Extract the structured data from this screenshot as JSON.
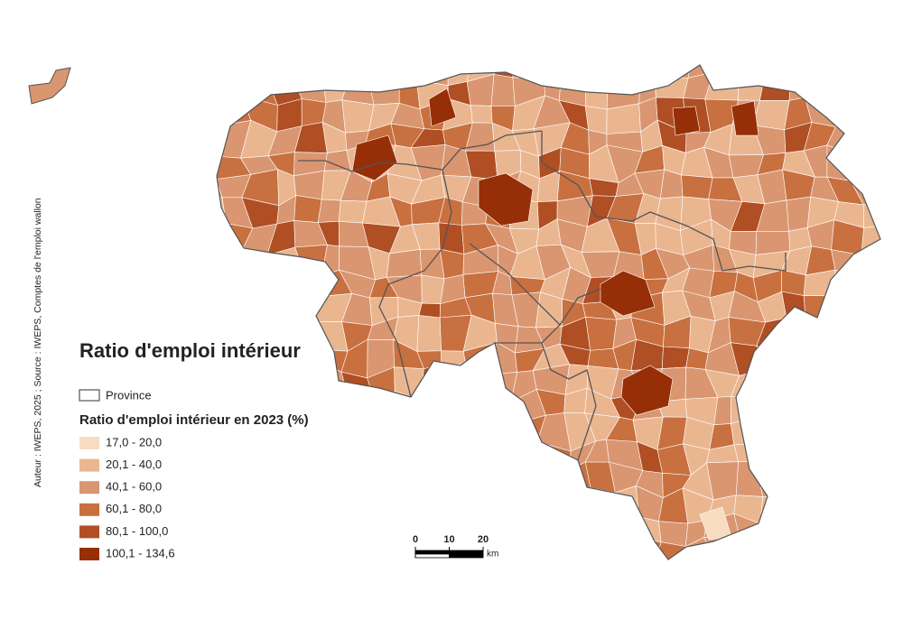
{
  "title": "Ratio d'emploi intérieur",
  "credit": "Auteur : IWEPS, 2025 ; Source : IWEPS, Comptes de l'emploi wallon",
  "legend": {
    "province": "Province",
    "subtitle": "Ratio d'emploi intérieur en 2023 (%)",
    "classes": [
      {
        "label": "17,0 - 20,0",
        "color": "#f7dcc0"
      },
      {
        "label": "20,1 - 40,0",
        "color": "#eab690"
      },
      {
        "label": "40,1 - 60,0",
        "color": "#d99670"
      },
      {
        "label": "60,1 - 80,0",
        "color": "#c8703f"
      },
      {
        "label": "80,1 - 100,0",
        "color": "#b04e24"
      },
      {
        "label": "100,1 - 134,6",
        "color": "#962e07"
      }
    ]
  },
  "scale_bar": {
    "ticks": [
      0,
      10,
      20
    ],
    "unit": "km"
  }
}
